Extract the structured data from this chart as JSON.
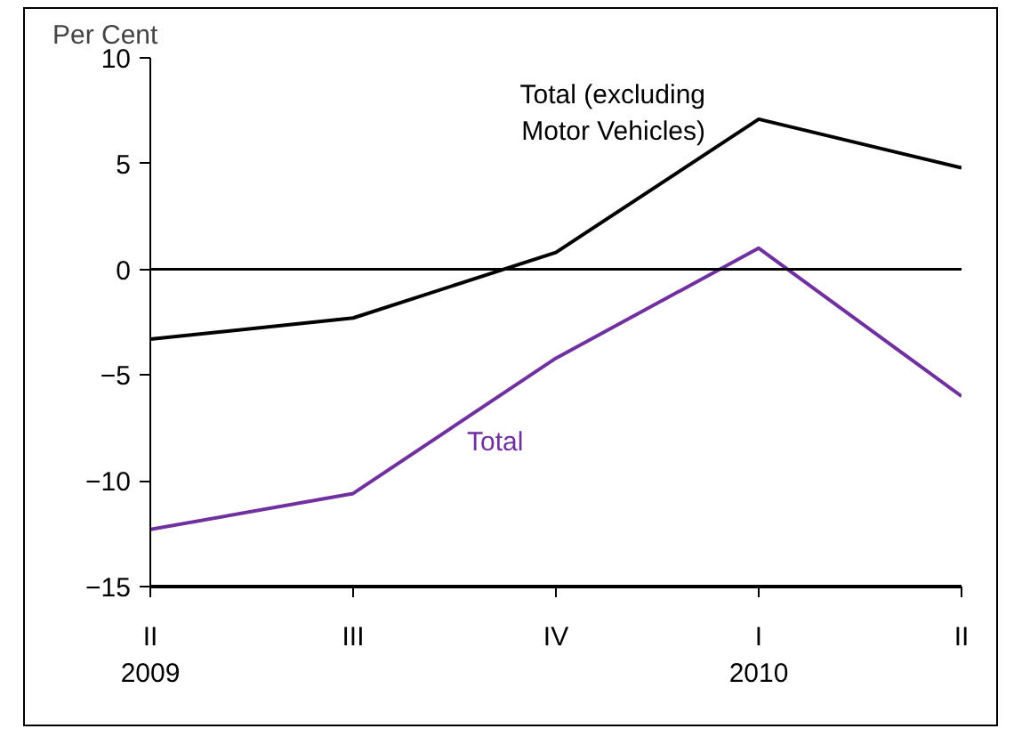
{
  "chart_data": {
    "type": "line",
    "ylabel": "Per Cent",
    "categories": [
      "II\n2009",
      "III",
      "IV",
      "I\n2010",
      "II"
    ],
    "series": [
      {
        "name": "Total (excluding\nMotor Vehicles)",
        "color": "#000000",
        "values": [
          -3.3,
          -2.3,
          0.8,
          7.1,
          4.8
        ]
      },
      {
        "name": "Total",
        "color": "#7030a0",
        "values": [
          -12.3,
          -10.6,
          -4.2,
          1.0,
          -6.0
        ]
      }
    ],
    "ylim": [
      -15,
      10
    ],
    "yticks": [
      -15,
      -10,
      -5,
      0,
      5,
      10
    ],
    "ref_lines": [
      {
        "axis": "y",
        "value": 0,
        "color": "#000000"
      }
    ],
    "grid": false,
    "legend": false,
    "marker": "none",
    "line_style": "solid"
  }
}
